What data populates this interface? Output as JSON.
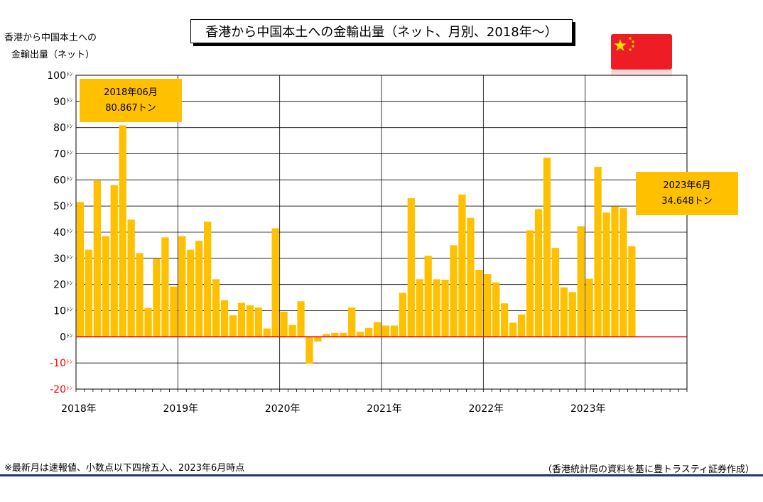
{
  "header": {
    "title": "香港から中国本土への金輸出量（ネット、月別、2018年～）",
    "ylabel_line1": "香港から中国本土への",
    "ylabel_line2": "金輸出量（ネット）"
  },
  "callouts": {
    "first": {
      "line1": "2018年06月",
      "line2": "80.867トン"
    },
    "last": {
      "line1": "2023年6月",
      "line2": "34.648トン"
    }
  },
  "footer": {
    "note": "※最新月は速報値、小数点以下四捨五入、2023年6月時点",
    "source": "（香港統計局の資料を基に豊トラスティ証券作成）"
  },
  "colors": {
    "bar": "#ffc000",
    "zero_line": "#ff0000",
    "negative_tick": "#ff0000",
    "flag_red": "#ee1c25",
    "flag_star": "#ffde00"
  },
  "icons": {
    "flag": "china-flag-icon"
  },
  "chart_data": {
    "type": "bar",
    "title": "香港から中国本土への金輸出量（ネット、月別、2018年～）",
    "ylabel": "香港から中国本土への金輸出量（ネット）",
    "unit": "トン",
    "ylim": [
      -20,
      100
    ],
    "yticks": [
      100,
      90,
      80,
      70,
      60,
      50,
      40,
      30,
      20,
      10,
      0,
      -10,
      -20
    ],
    "ytick_labels": [
      "100",
      "90",
      "80",
      "70",
      "60",
      "50",
      "40",
      "30",
      "20",
      "10",
      "0",
      "-10",
      "-20"
    ],
    "ytick_unit": "ﾄﾝ",
    "x_year_labels": [
      "2018年",
      "2019年",
      "2020年",
      "2021年",
      "2022年",
      "2023年"
    ],
    "grid": true,
    "start": "2018-01",
    "months_span": 72,
    "values": [
      51.5,
      33.3,
      59.7,
      38.5,
      58.0,
      80.867,
      44.8,
      32.0,
      11.0,
      29.8,
      38.0,
      19.2,
      38.5,
      33.3,
      36.7,
      44.0,
      22.0,
      14.0,
      8.2,
      13.0,
      12.0,
      11.2,
      3.2,
      41.5,
      9.6,
      4.5,
      13.6,
      -10.3,
      -1.8,
      1.1,
      1.5,
      1.5,
      11.2,
      1.9,
      3.4,
      5.6,
      4.3,
      4.3,
      16.8,
      53.0,
      22.0,
      31.0,
      22.0,
      21.8,
      35.0,
      54.4,
      45.5,
      25.6,
      24.0,
      20.8,
      12.8,
      5.4,
      8.5,
      40.7,
      48.8,
      68.5,
      34.0,
      18.9,
      17.1,
      42.3,
      22.2,
      65.0,
      47.5,
      49.8,
      49.2,
      34.648
    ]
  }
}
